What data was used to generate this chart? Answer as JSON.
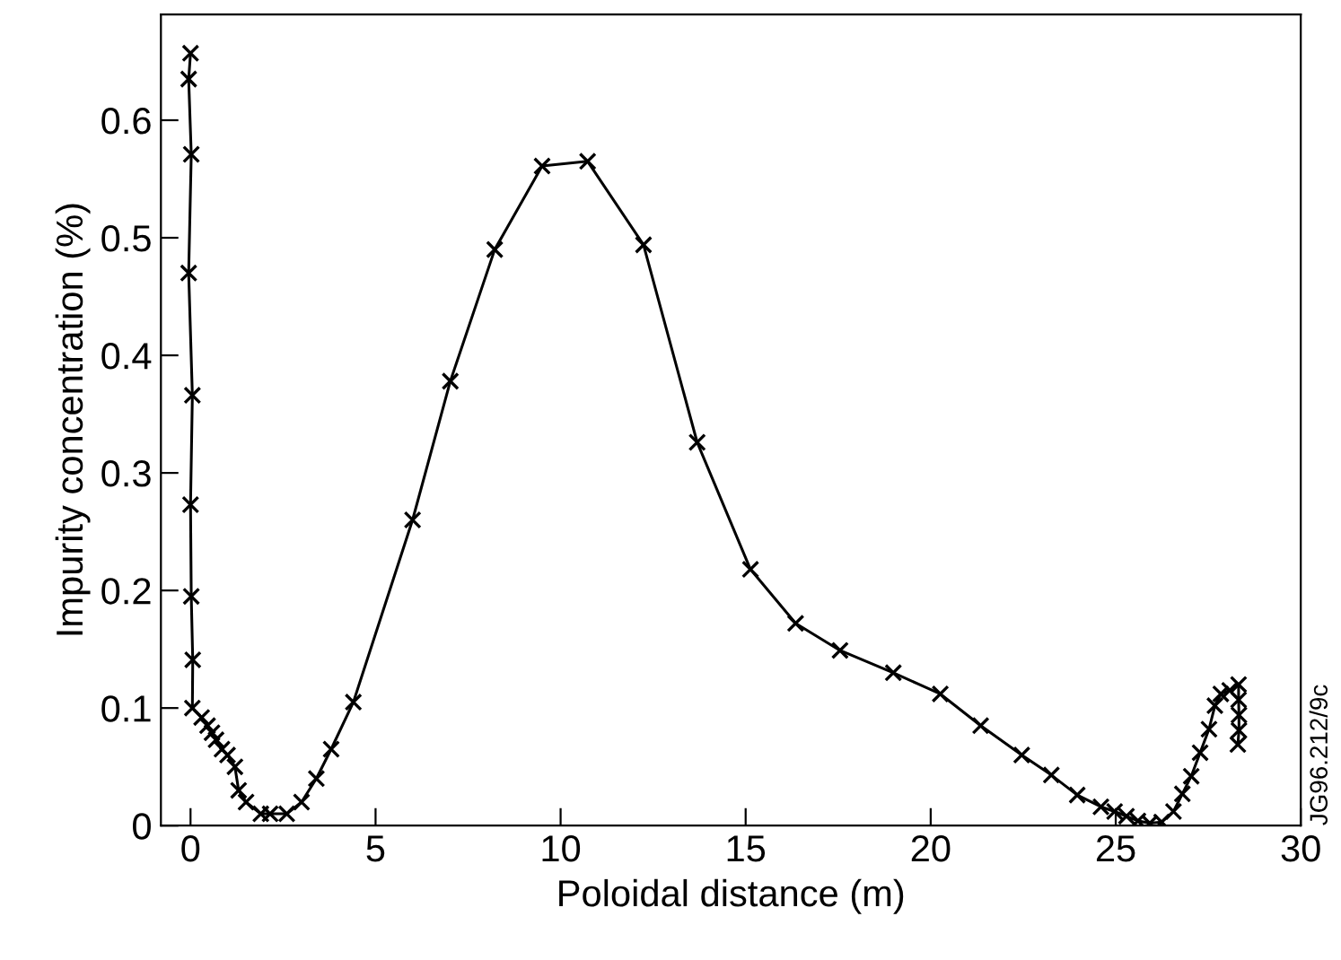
{
  "chart_data": {
    "type": "line",
    "xlabel": "Poloidal distance (m)",
    "ylabel": "Impurity concentration (%)",
    "xlim": [
      -0.8,
      30
    ],
    "ylim": [
      0,
      0.69
    ],
    "xticks": [
      0,
      5,
      10,
      15,
      20,
      25,
      30
    ],
    "yticks": [
      0,
      0.1,
      0.2,
      0.3,
      0.4,
      0.5,
      0.6
    ],
    "grid": false,
    "legend": false,
    "marker": "cross",
    "line_style": "solid",
    "annotations": [
      "JG96.212/9c"
    ],
    "series": [
      {
        "color": "#000000",
        "x": [
          0,
          -0.05,
          0.02,
          -0.05,
          0.05,
          0.0,
          0.02,
          0.06,
          0.05,
          0.3,
          0.46,
          0.58,
          0.69,
          0.85,
          1.0,
          1.2,
          1.3,
          1.5,
          1.9,
          2.15,
          2.6,
          3.0,
          3.4,
          3.8,
          4.4,
          6.0,
          7.02,
          8.22,
          9.5,
          10.73,
          12.24,
          13.69,
          15.13,
          16.35,
          17.55,
          18.99,
          20.26,
          21.35,
          22.46,
          23.26,
          23.96,
          24.6,
          24.97,
          25.29,
          25.6,
          25.92,
          26.24,
          26.56,
          26.8,
          27.04,
          27.28,
          27.52,
          27.68,
          27.84,
          28.08,
          28.32,
          28.32,
          28.33,
          28.33,
          28.3
        ],
        "values": [
          0.657,
          0.635,
          0.571,
          0.47,
          0.366,
          0.273,
          0.195,
          0.141,
          0.1,
          0.092,
          0.085,
          0.079,
          0.073,
          0.065,
          0.06,
          0.05,
          0.03,
          0.02,
          0.01,
          0.01,
          0.01,
          0.02,
          0.04,
          0.065,
          0.105,
          0.26,
          0.378,
          0.49,
          0.561,
          0.565,
          0.494,
          0.326,
          0.218,
          0.172,
          0.149,
          0.13,
          0.112,
          0.085,
          0.06,
          0.043,
          0.026,
          0.016,
          0.012,
          0.008,
          0.004,
          0.002,
          0.003,
          0.012,
          0.027,
          0.042,
          0.062,
          0.082,
          0.102,
          0.112,
          0.115,
          0.12,
          0.107,
          0.094,
          0.081,
          0.069
        ]
      }
    ]
  }
}
